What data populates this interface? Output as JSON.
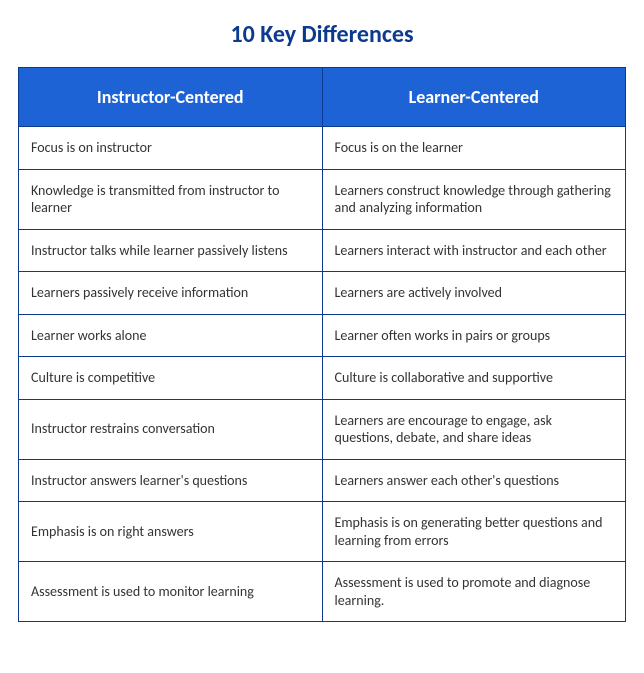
{
  "title": "10 Key Differences",
  "title_color": "#0b3a8f",
  "title_fontsize": 24,
  "header_bg": "#1e63d6",
  "header_text_color": "#ffffff",
  "header_fontsize": 18,
  "border_color": "#0b3a8f",
  "border_width": 1,
  "body_text_color": "#333333",
  "body_fontsize": 14,
  "background_color": "#ffffff",
  "type": "table",
  "columns": [
    "Instructor-Centered",
    "Learner-Centered"
  ],
  "rows": [
    [
      "Focus is on instructor",
      "Focus is on the learner"
    ],
    [
      "Knowledge is transmitted from instructor to learner",
      "Learners construct knowledge through gathering and analyzing information"
    ],
    [
      "Instructor talks while learner passively listens",
      "Learners interact with instructor and each other"
    ],
    [
      "Learners passively receive information",
      "Learners are actively involved"
    ],
    [
      "Learner works alone",
      "Learner often works in pairs or groups"
    ],
    [
      "Culture is competitive",
      "Culture is collaborative and supportive"
    ],
    [
      "Instructor restrains conversation",
      "Learners are encourage to engage, ask questions, debate, and share ideas"
    ],
    [
      "Instructor answers learner's questions",
      "Learners answer each other's questions"
    ],
    [
      "Emphasis is on right answers",
      "Emphasis is on generating better questions and learning from errors"
    ],
    [
      "Assessment is used to monitor learning",
      "Assessment is used to promote and diagnose learning."
    ]
  ]
}
